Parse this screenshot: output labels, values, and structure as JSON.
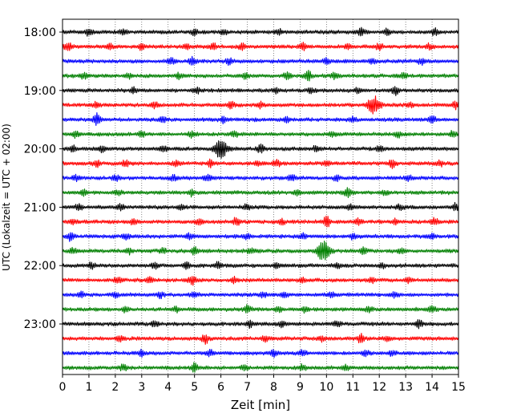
{
  "chart_data": {
    "type": "line",
    "title": "",
    "xlabel": "Zeit  [min]",
    "ylabel": "UTC (Lokalzeit = UTC + 02:00)",
    "xlim": [
      0,
      15
    ],
    "x_ticks": [
      "0",
      "1",
      "2",
      "3",
      "4",
      "5",
      "6",
      "7",
      "8",
      "9",
      "10",
      "11",
      "12",
      "13",
      "14",
      "15"
    ],
    "y_tick_labels": [
      "18:00",
      "19:00",
      "20:00",
      "21:00",
      "22:00",
      "23:00"
    ],
    "grid": "vertical dotted lines at each minute",
    "traces": [
      {
        "start": "18:00",
        "color": "#000000",
        "events": [
          [
            1.0,
            0.9
          ],
          [
            2.3,
            0.6
          ],
          [
            5.0,
            0.6
          ],
          [
            6.1,
            0.7
          ],
          [
            8.2,
            0.7
          ],
          [
            11.3,
            1.0
          ],
          [
            12.3,
            0.7
          ],
          [
            14.1,
            0.7
          ]
        ]
      },
      {
        "start": "18:15",
        "color": "#ff0000",
        "events": [
          [
            0.2,
            1.0
          ],
          [
            1.8,
            0.6
          ],
          [
            3.0,
            0.6
          ],
          [
            4.7,
            0.6
          ],
          [
            5.7,
            0.8
          ],
          [
            6.8,
            0.6
          ],
          [
            9.1,
            0.7
          ],
          [
            10.8,
            0.6
          ],
          [
            12.0,
            0.6
          ],
          [
            13.9,
            0.6
          ]
        ]
      },
      {
        "start": "18:30",
        "color": "#0000ff",
        "events": [
          [
            4.1,
            0.7
          ],
          [
            4.9,
            0.8
          ],
          [
            6.3,
            0.6
          ],
          [
            10.0,
            0.6
          ],
          [
            11.7,
            0.6
          ],
          [
            13.6,
            0.6
          ]
        ]
      },
      {
        "start": "18:45",
        "color": "#008000",
        "events": [
          [
            0.8,
            0.6
          ],
          [
            2.5,
            0.6
          ],
          [
            4.4,
            0.6
          ],
          [
            6.9,
            0.6
          ],
          [
            8.5,
            0.7
          ],
          [
            9.3,
            1.2
          ],
          [
            10.3,
            0.7
          ],
          [
            12.9,
            0.6
          ]
        ]
      },
      {
        "start": "19:00",
        "color": "#000000",
        "events": [
          [
            2.7,
            0.6
          ],
          [
            5.1,
            0.6
          ],
          [
            8.1,
            0.6
          ],
          [
            9.4,
            0.6
          ],
          [
            11.2,
            0.6
          ],
          [
            12.6,
            1.0
          ]
        ]
      },
      {
        "start": "19:15",
        "color": "#ff0000",
        "events": [
          [
            1.3,
            0.6
          ],
          [
            3.5,
            0.6
          ],
          [
            6.4,
            0.7
          ],
          [
            7.5,
            0.7
          ],
          [
            11.8,
            2.0
          ],
          [
            13.2,
            0.6
          ],
          [
            14.9,
            0.8
          ]
        ]
      },
      {
        "start": "19:30",
        "color": "#0000ff",
        "events": [
          [
            1.3,
            1.5
          ],
          [
            3.8,
            0.6
          ],
          [
            6.1,
            0.6
          ],
          [
            8.5,
            0.6
          ],
          [
            11.0,
            0.6
          ],
          [
            14.0,
            0.9
          ]
        ]
      },
      {
        "start": "19:45",
        "color": "#008000",
        "events": [
          [
            0.5,
            0.6
          ],
          [
            3.0,
            0.6
          ],
          [
            4.9,
            0.7
          ],
          [
            6.5,
            0.6
          ],
          [
            10.2,
            0.6
          ],
          [
            12.7,
            0.6
          ],
          [
            14.8,
            0.7
          ]
        ]
      },
      {
        "start": "20:00",
        "color": "#000000",
        "events": [
          [
            0.4,
            0.6
          ],
          [
            1.5,
            0.7
          ],
          [
            3.8,
            0.6
          ],
          [
            6.0,
            2.2
          ],
          [
            7.5,
            0.8
          ],
          [
            9.6,
            0.6
          ],
          [
            12.0,
            0.6
          ]
        ]
      },
      {
        "start": "20:15",
        "color": "#ff0000",
        "events": [
          [
            1.3,
            0.7
          ],
          [
            2.4,
            0.6
          ],
          [
            4.3,
            0.6
          ],
          [
            5.6,
            0.8
          ],
          [
            7.4,
            0.6
          ],
          [
            8.1,
            0.8
          ],
          [
            10.0,
            0.7
          ],
          [
            12.5,
            0.9
          ],
          [
            14.3,
            0.6
          ]
        ]
      },
      {
        "start": "20:30",
        "color": "#0000ff",
        "events": [
          [
            0.5,
            0.6
          ],
          [
            2.0,
            0.7
          ],
          [
            4.2,
            0.6
          ],
          [
            5.5,
            0.7
          ],
          [
            8.7,
            0.7
          ],
          [
            10.4,
            0.6
          ],
          [
            13.1,
            0.6
          ]
        ]
      },
      {
        "start": "20:45",
        "color": "#008000",
        "events": [
          [
            0.8,
            0.6
          ],
          [
            2.1,
            0.6
          ],
          [
            4.9,
            0.7
          ],
          [
            8.9,
            0.6
          ],
          [
            10.8,
            1.0
          ],
          [
            12.2,
            0.6
          ]
        ]
      },
      {
        "start": "21:00",
        "color": "#000000",
        "events": [
          [
            0.6,
            0.6
          ],
          [
            2.2,
            0.6
          ],
          [
            4.5,
            0.6
          ],
          [
            7.0,
            0.6
          ],
          [
            10.9,
            0.7
          ],
          [
            12.8,
            0.6
          ],
          [
            14.9,
            0.8
          ]
        ]
      },
      {
        "start": "21:15",
        "color": "#ff0000",
        "events": [
          [
            0.4,
            0.6
          ],
          [
            2.7,
            0.7
          ],
          [
            5.2,
            0.6
          ],
          [
            6.6,
            1.0
          ],
          [
            8.3,
            0.6
          ],
          [
            10.0,
            1.2
          ],
          [
            11.2,
            0.7
          ],
          [
            12.6,
            0.6
          ],
          [
            14.1,
            0.7
          ]
        ]
      },
      {
        "start": "21:30",
        "color": "#0000ff",
        "events": [
          [
            0.3,
            0.9
          ],
          [
            2.4,
            0.6
          ],
          [
            4.8,
            0.6
          ],
          [
            7.0,
            0.6
          ],
          [
            9.1,
            0.6
          ],
          [
            11.0,
            0.7
          ],
          [
            14.0,
            0.6
          ]
        ]
      },
      {
        "start": "21:45",
        "color": "#008000",
        "events": [
          [
            0.4,
            0.6
          ],
          [
            2.5,
            0.6
          ],
          [
            3.8,
            0.6
          ],
          [
            5.0,
            1.0
          ],
          [
            7.1,
            0.6
          ],
          [
            9.9,
            2.5
          ],
          [
            11.4,
            0.8
          ],
          [
            12.8,
            0.6
          ]
        ]
      },
      {
        "start": "22:00",
        "color": "#000000",
        "events": [
          [
            1.1,
            0.6
          ],
          [
            3.5,
            0.6
          ],
          [
            4.7,
            0.8
          ],
          [
            5.9,
            0.7
          ],
          [
            8.1,
            0.6
          ],
          [
            10.4,
            0.6
          ],
          [
            12.1,
            0.6
          ]
        ]
      },
      {
        "start": "22:15",
        "color": "#ff0000",
        "events": [
          [
            2.1,
            0.6
          ],
          [
            3.3,
            0.6
          ],
          [
            4.9,
            1.0
          ],
          [
            6.5,
            0.6
          ],
          [
            9.1,
            0.6
          ],
          [
            11.7,
            0.6
          ],
          [
            13.1,
            0.6
          ]
        ]
      },
      {
        "start": "22:30",
        "color": "#0000ff",
        "events": [
          [
            0.7,
            0.6
          ],
          [
            2.0,
            0.6
          ],
          [
            3.7,
            0.6
          ],
          [
            5.0,
            0.6
          ],
          [
            7.6,
            0.6
          ],
          [
            8.4,
            0.6
          ],
          [
            10.2,
            0.6
          ],
          [
            12.6,
            0.6
          ]
        ]
      },
      {
        "start": "22:45",
        "color": "#008000",
        "events": [
          [
            2.4,
            0.6
          ],
          [
            4.3,
            0.6
          ],
          [
            7.0,
            0.9
          ],
          [
            8.2,
            0.6
          ],
          [
            9.2,
            0.6
          ],
          [
            11.6,
            0.6
          ],
          [
            14.0,
            0.7
          ]
        ]
      },
      {
        "start": "23:00",
        "color": "#000000",
        "events": [
          [
            3.5,
            0.6
          ],
          [
            7.1,
            0.8
          ],
          [
            8.3,
            0.6
          ],
          [
            10.4,
            0.6
          ],
          [
            13.5,
            0.9
          ]
        ]
      },
      {
        "start": "23:15",
        "color": "#ff0000",
        "events": [
          [
            2.2,
            0.6
          ],
          [
            5.4,
            1.0
          ],
          [
            7.7,
            0.6
          ],
          [
            9.8,
            0.6
          ],
          [
            11.3,
            1.1
          ],
          [
            12.3,
            0.6
          ]
        ]
      },
      {
        "start": "23:30",
        "color": "#0000ff",
        "events": [
          [
            3.0,
            0.6
          ],
          [
            5.6,
            0.6
          ],
          [
            8.0,
            0.7
          ],
          [
            9.1,
            0.7
          ],
          [
            11.5,
            0.7
          ],
          [
            12.5,
            0.6
          ]
        ]
      },
      {
        "start": "23:45",
        "color": "#008000",
        "events": [
          [
            2.3,
            0.6
          ],
          [
            5.0,
            0.9
          ],
          [
            6.9,
            0.6
          ],
          [
            9.1,
            0.6
          ],
          [
            10.7,
            0.6
          ]
        ]
      }
    ]
  }
}
